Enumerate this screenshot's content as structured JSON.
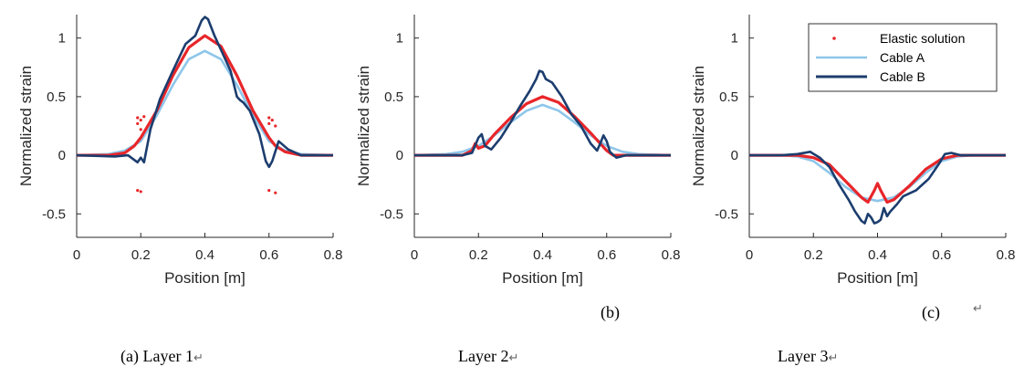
{
  "colors": {
    "elastic": "#e8262a",
    "cable_a": "#8ec6ea",
    "cable_b": "#1c3d6e",
    "axis": "#262626"
  },
  "legend": {
    "entries": [
      "Elastic solution",
      "Cable A",
      "Cable B"
    ],
    "location": "top-right of panel (c)"
  },
  "captions": {
    "a": "(a) Layer 1",
    "layer2": "Layer 2",
    "layer3": "Layer 3",
    "b": "(b)",
    "c": "(c)",
    "return_symbol": "↵"
  },
  "chart_data": [
    {
      "type": "line",
      "panel": "Layer 1",
      "xlabel": "Position [m]",
      "ylabel": "Normalized strain",
      "xlim": [
        0,
        0.8
      ],
      "ylim": [
        -0.7,
        1.2
      ],
      "xticks": [
        "0",
        "0.2",
        "0.4",
        "0.6",
        "0.8"
      ],
      "yticks": [
        "-0.5",
        "0",
        "0.5",
        "1"
      ],
      "series": [
        {
          "name": "Elastic solution",
          "style": "line+markers",
          "x": [
            0,
            0.1,
            0.15,
            0.18,
            0.2,
            0.25,
            0.3,
            0.35,
            0.4,
            0.45,
            0.5,
            0.55,
            0.6,
            0.62,
            0.65,
            0.7,
            0.8
          ],
          "y": [
            0,
            0.0,
            0.02,
            0.08,
            0.15,
            0.38,
            0.68,
            0.92,
            1.02,
            0.93,
            0.68,
            0.38,
            0.15,
            0.08,
            0.03,
            0.0,
            0
          ],
          "markers": [
            [
              0.19,
              0.32
            ],
            [
              0.2,
              0.3
            ],
            [
              0.19,
              0.27
            ],
            [
              0.21,
              0.33
            ],
            [
              0.2,
              0.22
            ],
            [
              0.19,
              -0.3
            ],
            [
              0.2,
              -0.31
            ],
            [
              0.6,
              0.32
            ],
            [
              0.61,
              0.3
            ],
            [
              0.6,
              0.27
            ],
            [
              0.62,
              0.25
            ],
            [
              0.6,
              -0.3
            ],
            [
              0.62,
              -0.32
            ]
          ]
        },
        {
          "name": "Cable A",
          "x": [
            0,
            0.1,
            0.15,
            0.2,
            0.25,
            0.3,
            0.35,
            0.4,
            0.45,
            0.5,
            0.55,
            0.6,
            0.65,
            0.7,
            0.8
          ],
          "y": [
            0,
            0.01,
            0.04,
            0.12,
            0.34,
            0.6,
            0.82,
            0.89,
            0.82,
            0.6,
            0.34,
            0.12,
            0.04,
            0.01,
            0
          ]
        },
        {
          "name": "Cable B",
          "x": [
            0,
            0.12,
            0.16,
            0.19,
            0.2,
            0.21,
            0.23,
            0.26,
            0.3,
            0.34,
            0.37,
            0.39,
            0.4,
            0.41,
            0.43,
            0.45,
            0.48,
            0.5,
            0.51,
            0.52,
            0.54,
            0.57,
            0.59,
            0.6,
            0.61,
            0.63,
            0.66,
            0.7,
            0.8
          ],
          "y": [
            0,
            -0.01,
            0.0,
            -0.06,
            -0.02,
            -0.06,
            0.22,
            0.48,
            0.72,
            0.95,
            1.02,
            1.15,
            1.18,
            1.16,
            1.02,
            0.9,
            0.72,
            0.5,
            0.47,
            0.45,
            0.38,
            0.18,
            -0.05,
            -0.1,
            -0.05,
            0.12,
            0.05,
            0.0,
            0
          ]
        }
      ]
    },
    {
      "type": "line",
      "panel": "Layer 2",
      "xlabel": "Position [m]",
      "ylabel": "Normalized strain",
      "xlim": [
        0,
        0.8
      ],
      "ylim": [
        -0.7,
        1.2
      ],
      "xticks": [
        "0",
        "0.2",
        "0.4",
        "0.6",
        "0.8"
      ],
      "yticks": [
        "-0.5",
        "0",
        "0.5",
        "1"
      ],
      "series": [
        {
          "name": "Elastic solution",
          "x": [
            0,
            0.15,
            0.18,
            0.19,
            0.2,
            0.22,
            0.25,
            0.3,
            0.35,
            0.4,
            0.45,
            0.5,
            0.55,
            0.58,
            0.6,
            0.62,
            0.65,
            0.8
          ],
          "y": [
            0,
            0.0,
            0.04,
            0.1,
            0.06,
            0.08,
            0.18,
            0.32,
            0.44,
            0.5,
            0.45,
            0.33,
            0.19,
            0.1,
            0.04,
            0.0,
            0.0,
            0
          ]
        },
        {
          "name": "Cable A",
          "x": [
            0,
            0.1,
            0.15,
            0.2,
            0.25,
            0.3,
            0.35,
            0.4,
            0.45,
            0.5,
            0.55,
            0.6,
            0.65,
            0.7,
            0.8
          ],
          "y": [
            0,
            0.01,
            0.03,
            0.08,
            0.17,
            0.28,
            0.38,
            0.43,
            0.38,
            0.28,
            0.17,
            0.08,
            0.03,
            0.01,
            0
          ]
        },
        {
          "name": "Cable B",
          "x": [
            0,
            0.15,
            0.18,
            0.2,
            0.21,
            0.22,
            0.24,
            0.27,
            0.3,
            0.33,
            0.36,
            0.38,
            0.39,
            0.4,
            0.41,
            0.43,
            0.46,
            0.49,
            0.52,
            0.55,
            0.57,
            0.58,
            0.59,
            0.6,
            0.61,
            0.63,
            0.66,
            0.7,
            0.8
          ],
          "y": [
            0,
            0.0,
            0.02,
            0.15,
            0.18,
            0.08,
            0.05,
            0.15,
            0.28,
            0.42,
            0.55,
            0.65,
            0.72,
            0.71,
            0.65,
            0.62,
            0.5,
            0.35,
            0.25,
            0.1,
            0.04,
            0.1,
            0.17,
            0.12,
            0.03,
            -0.02,
            0.0,
            0.0,
            0
          ]
        }
      ]
    },
    {
      "type": "line",
      "panel": "Layer 3",
      "xlabel": "Position [m]",
      "ylabel": "Normalized strain",
      "xlim": [
        0,
        0.8
      ],
      "ylim": [
        -0.7,
        1.2
      ],
      "xticks": [
        "0",
        "0.2",
        "0.4",
        "0.6",
        "0.8"
      ],
      "yticks": [
        "-0.5",
        "0",
        "0.5",
        "1"
      ],
      "series": [
        {
          "name": "Elastic solution",
          "x": [
            0,
            0.15,
            0.2,
            0.25,
            0.3,
            0.35,
            0.37,
            0.39,
            0.4,
            0.41,
            0.43,
            0.45,
            0.5,
            0.55,
            0.6,
            0.65,
            0.8
          ],
          "y": [
            0,
            0.0,
            -0.02,
            -0.08,
            -0.22,
            -0.36,
            -0.4,
            -0.3,
            -0.24,
            -0.3,
            -0.4,
            -0.38,
            -0.26,
            -0.12,
            -0.03,
            0.0,
            0
          ]
        },
        {
          "name": "Cable A",
          "x": [
            0,
            0.1,
            0.15,
            0.2,
            0.25,
            0.3,
            0.35,
            0.4,
            0.45,
            0.5,
            0.55,
            0.6,
            0.65,
            0.7,
            0.8
          ],
          "y": [
            0,
            0.0,
            -0.01,
            -0.05,
            -0.15,
            -0.27,
            -0.36,
            -0.39,
            -0.36,
            -0.27,
            -0.15,
            -0.05,
            -0.01,
            0.0,
            0
          ]
        },
        {
          "name": "Cable B",
          "x": [
            0,
            0.1,
            0.15,
            0.19,
            0.22,
            0.25,
            0.28,
            0.31,
            0.33,
            0.35,
            0.36,
            0.37,
            0.38,
            0.39,
            0.4,
            0.41,
            0.42,
            0.43,
            0.44,
            0.46,
            0.48,
            0.52,
            0.56,
            0.59,
            0.61,
            0.63,
            0.66,
            0.7,
            0.8
          ],
          "y": [
            0,
            0.0,
            0.01,
            0.03,
            -0.02,
            -0.1,
            -0.25,
            -0.38,
            -0.48,
            -0.56,
            -0.58,
            -0.5,
            -0.53,
            -0.58,
            -0.57,
            -0.55,
            -0.45,
            -0.52,
            -0.48,
            -0.42,
            -0.35,
            -0.3,
            -0.2,
            -0.08,
            0.01,
            0.02,
            0.0,
            0.0,
            0
          ]
        }
      ]
    }
  ]
}
